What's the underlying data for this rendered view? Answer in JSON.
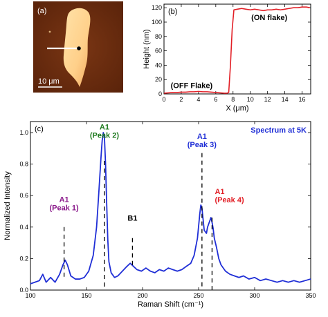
{
  "colors": {
    "afm_bg": "#6b2e10",
    "afm_flake": "#ffd08a",
    "height_line": "#e21f26",
    "raman_line": "#1f2ed6",
    "peak1": "#8b1a8b",
    "peak2": "#1f7a1f",
    "peak3": "#1f2ed6",
    "peak4": "#e21f26",
    "b1": "#000000"
  },
  "afm": {
    "panel_label": "(a)",
    "scale_bar_label": "10 μm"
  },
  "chart_data": [
    {
      "type": "line",
      "panel_label": "(b)",
      "xlabel": "X (μm)",
      "ylabel": "Height (nm)",
      "xlim": [
        0,
        17
      ],
      "ylim": [
        0,
        125
      ],
      "xticks": [
        0,
        2,
        4,
        6,
        8,
        10,
        12,
        14,
        16
      ],
      "yticks": [
        0,
        20,
        40,
        60,
        80,
        100,
        120
      ],
      "grid": false,
      "series": [
        {
          "x": [
            0,
            0.5,
            1,
            1.5,
            2,
            2.5,
            3,
            3.5,
            4,
            4.5,
            5,
            5.5,
            6,
            6.5,
            7,
            7.3,
            7.5,
            7.7,
            7.9,
            8.1,
            8.5,
            9,
            9.5,
            10,
            10.5,
            11,
            11.5,
            12,
            12.5,
            13,
            13.5,
            14,
            14.5,
            15,
            15.5,
            16,
            16.5,
            16.9
          ],
          "y": [
            1,
            1.5,
            2,
            2,
            2.5,
            2.5,
            3,
            3,
            3.5,
            3,
            3,
            2.5,
            2,
            1.5,
            1,
            1,
            2,
            40,
            90,
            117,
            118,
            119,
            118,
            117,
            118,
            117,
            116,
            117,
            117,
            118,
            117,
            118,
            119,
            120,
            120,
            121,
            121,
            120
          ]
        }
      ],
      "annotations": [
        {
          "text": "(ON flake)",
          "x": 12.2,
          "y": 103
        },
        {
          "text": "(OFF Flake)",
          "x": 3.2,
          "y": 8
        }
      ]
    },
    {
      "type": "line",
      "panel_label": "(c)",
      "title": "Spectrum at 5K",
      "xlabel": "Raman Shift (cm⁻¹)",
      "ylabel": "Normalized Intensity",
      "xlim": [
        100,
        350
      ],
      "ylim": [
        0,
        1.07
      ],
      "xticks": [
        100,
        150,
        200,
        250,
        300,
        350
      ],
      "yticks": [
        0.0,
        0.2,
        0.4,
        0.6,
        0.8,
        1.0
      ],
      "ytick_labels": [
        "0.0",
        "0.2",
        "0.4",
        "0.6",
        "0.8",
        "1.0"
      ],
      "grid": false,
      "series": [
        {
          "x": [
            100,
            104,
            108,
            111,
            114,
            118,
            122,
            126,
            129,
            131,
            133,
            136,
            140,
            144,
            148,
            152,
            156,
            159,
            161,
            163,
            164,
            165,
            166,
            167,
            168,
            169,
            170,
            172,
            175,
            178,
            182,
            186,
            189,
            192,
            195,
            199,
            203,
            207,
            211,
            215,
            219,
            223,
            227,
            231,
            235,
            239,
            243,
            246,
            249,
            251,
            252,
            253,
            254,
            255,
            257,
            258,
            260,
            261,
            262,
            263,
            264,
            266,
            268,
            270,
            274,
            278,
            282,
            286,
            290,
            295,
            300,
            305,
            310,
            315,
            320,
            325,
            330,
            335,
            340,
            345,
            350
          ],
          "y": [
            0.04,
            0.05,
            0.06,
            0.1,
            0.05,
            0.08,
            0.05,
            0.1,
            0.16,
            0.19,
            0.16,
            0.09,
            0.07,
            0.07,
            0.08,
            0.12,
            0.22,
            0.4,
            0.62,
            0.85,
            0.95,
            1.0,
            0.97,
            0.8,
            0.55,
            0.32,
            0.18,
            0.11,
            0.08,
            0.09,
            0.12,
            0.15,
            0.17,
            0.15,
            0.13,
            0.12,
            0.14,
            0.12,
            0.11,
            0.13,
            0.12,
            0.14,
            0.13,
            0.12,
            0.13,
            0.15,
            0.17,
            0.22,
            0.33,
            0.48,
            0.54,
            0.52,
            0.45,
            0.38,
            0.36,
            0.4,
            0.44,
            0.46,
            0.43,
            0.39,
            0.33,
            0.27,
            0.2,
            0.16,
            0.12,
            0.1,
            0.09,
            0.08,
            0.09,
            0.07,
            0.08,
            0.06,
            0.07,
            0.06,
            0.05,
            0.06,
            0.05,
            0.06,
            0.05,
            0.06,
            0.07
          ]
        }
      ],
      "peak_markers": [
        {
          "name": "A1",
          "sub": "(Peak 1)",
          "x": 130,
          "y_top": 0.4,
          "y_bottom": 0.08,
          "color_key": "peak1",
          "label_y": 0.56
        },
        {
          "name": "A1",
          "sub": "(Peak 2)",
          "x": 166,
          "y_top": 0.82,
          "y_bottom": 0.0,
          "color_key": "peak2",
          "label_y": 1.02
        },
        {
          "name": "B1",
          "sub": "",
          "x": 191,
          "y_top": 0.33,
          "y_bottom": 0.15,
          "color_key": "b1",
          "label_y": 0.44
        },
        {
          "name": "A1",
          "sub": "(Peak 3)",
          "x": 253,
          "y_top": 0.87,
          "y_bottom": 0.0,
          "color_key": "peak3",
          "label_y": 0.96
        },
        {
          "name": "A1",
          "sub": "(Peak 4)",
          "x": 262,
          "y_top": 0.46,
          "y_bottom": 0.0,
          "color_key": "peak4",
          "label_y": 0.61
        }
      ]
    }
  ]
}
